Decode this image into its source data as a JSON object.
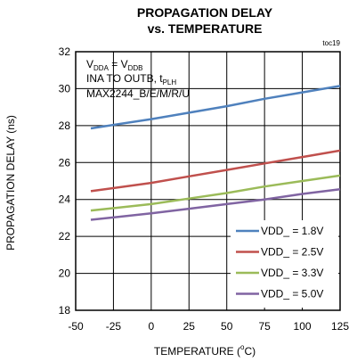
{
  "chart_data": {
    "type": "line",
    "title_line1": "PROPAGATION DELAY",
    "title_line2": "vs. TEMPERATURE",
    "figure_id": "toc19",
    "xlabel_main": "TEMPERATURE (",
    "xlabel_sup": "o",
    "xlabel_end": "C)",
    "ylabel": "PROPAGATION DELAY (ns)",
    "xlim": [
      -50,
      125
    ],
    "ylim": [
      18,
      32
    ],
    "xticks": [
      "-50",
      "-25",
      "0",
      "25",
      "50",
      "75",
      "100",
      "125"
    ],
    "yticks": [
      "18",
      "20",
      "22",
      "24",
      "26",
      "28",
      "30",
      "32"
    ],
    "grid": true,
    "legend_position": "bottom-right",
    "annotation": {
      "line1_a": "V",
      "line1_a_sub": "DDA",
      "line1_mid": " = V",
      "line1_b_sub": "DDB",
      "line2_a": "INA TO OUTB, t",
      "line2_sub": "PLH",
      "line3": "MAX2244_B/E/M/R/U"
    },
    "series": [
      {
        "name": "VDD_ = 1.8V",
        "color": "#4f81bd",
        "x": [
          -40,
          0,
          25,
          50,
          75,
          100,
          125
        ],
        "y": [
          27.85,
          28.35,
          28.7,
          29.05,
          29.45,
          29.8,
          30.15
        ]
      },
      {
        "name": "VDD_ = 2.5V",
        "color": "#c0504d",
        "x": [
          -40,
          0,
          25,
          50,
          75,
          100,
          125
        ],
        "y": [
          24.45,
          24.9,
          25.25,
          25.6,
          25.95,
          26.3,
          26.65
        ]
      },
      {
        "name": "VDD_ = 3.3V",
        "color": "#9bbb59",
        "x": [
          -40,
          0,
          25,
          50,
          75,
          100,
          125
        ],
        "y": [
          23.4,
          23.75,
          24.05,
          24.35,
          24.7,
          25.0,
          25.3
        ]
      },
      {
        "name": "VDD_ = 5.0V",
        "color": "#8064a2",
        "x": [
          -40,
          0,
          25,
          50,
          75,
          100,
          125
        ],
        "y": [
          22.9,
          23.25,
          23.5,
          23.75,
          24.0,
          24.3,
          24.55
        ]
      }
    ]
  }
}
